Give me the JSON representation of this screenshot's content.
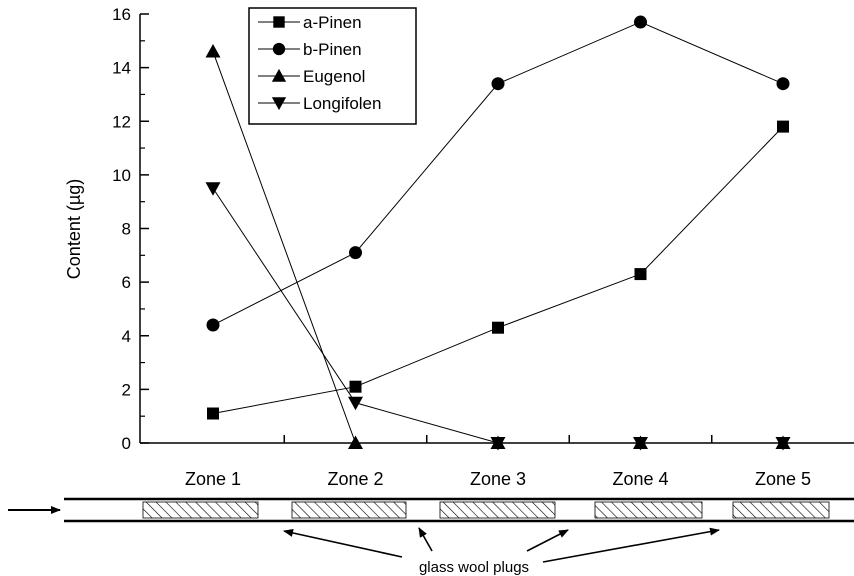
{
  "chart_data": {
    "type": "line",
    "ylabel": "Content (µg)",
    "ylim": [
      0,
      16
    ],
    "yticks": [
      "0",
      "2",
      "4",
      "6",
      "8",
      "10",
      "12",
      "14",
      "16"
    ],
    "categories": [
      "Zone 1",
      "Zone 2",
      "Zone 3",
      "Zone 4",
      "Zone 5"
    ],
    "legend_position": "top-center",
    "series": [
      {
        "name": "a-Pinen",
        "marker": "square",
        "values": [
          1.1,
          2.1,
          4.3,
          6.3,
          11.8
        ]
      },
      {
        "name": "b-Pinen",
        "marker": "circle",
        "values": [
          4.4,
          7.1,
          13.4,
          15.7,
          13.4
        ]
      },
      {
        "name": "Eugenol",
        "marker": "triangle-up",
        "values": [
          14.6,
          0,
          0,
          0,
          0
        ]
      },
      {
        "name": "Longifolen",
        "marker": "triangle-down",
        "values": [
          9.5,
          1.5,
          0,
          0,
          0
        ]
      }
    ]
  },
  "diagram": {
    "annotation": "glass wool plugs",
    "plug_count": 5
  }
}
